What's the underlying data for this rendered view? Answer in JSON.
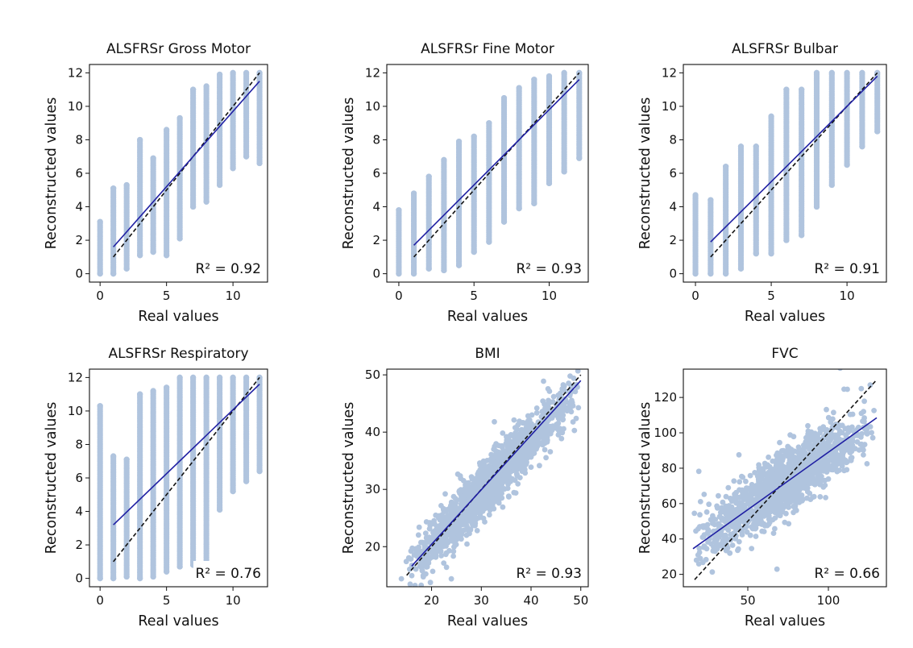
{
  "figure": {
    "colors": {
      "points": "#b0c4de",
      "fit_line": "#1f1fa3",
      "identity_line": "#111111",
      "frame": "#111111"
    }
  },
  "chart_data": [
    {
      "type": "scatter",
      "title": "ALSFRSr Gross Motor",
      "xlabel": "Real values",
      "ylabel": "Reconstructed values",
      "annotation": "R² = 0.92",
      "xlim": [
        -0.8,
        12.6
      ],
      "ylim": [
        -0.5,
        12.5
      ],
      "xticks": [
        0,
        5,
        10
      ],
      "yticks": [
        0,
        2,
        4,
        6,
        8,
        10,
        12
      ],
      "discrete_x": true,
      "x_values": [
        0,
        1,
        2,
        3,
        4,
        5,
        6,
        7,
        8,
        9,
        10,
        11,
        12
      ],
      "y_ranges": [
        [
          0,
          3.1
        ],
        [
          0,
          5.1
        ],
        [
          0.3,
          5.3
        ],
        [
          1.1,
          8.0
        ],
        [
          1.3,
          6.9
        ],
        [
          1.1,
          8.6
        ],
        [
          2.1,
          9.3
        ],
        [
          4.0,
          11.0
        ],
        [
          4.3,
          11.2
        ],
        [
          5.3,
          11.9
        ],
        [
          6.3,
          12.0
        ],
        [
          7.0,
          12.0
        ],
        [
          6.6,
          12.0
        ]
      ],
      "regression_line": {
        "x": [
          1,
          12
        ],
        "y": [
          1.6,
          11.5
        ]
      },
      "identity_line": {
        "x": [
          1,
          12
        ],
        "y": [
          1,
          12
        ]
      },
      "r_squared": 0.92
    },
    {
      "type": "scatter",
      "title": "ALSFRSr Fine Motor",
      "xlabel": "Real values",
      "ylabel": "Reconstructed values",
      "annotation": "R² = 0.93",
      "xlim": [
        -0.8,
        12.6
      ],
      "ylim": [
        -0.5,
        12.5
      ],
      "xticks": [
        0,
        5,
        10
      ],
      "yticks": [
        0,
        2,
        4,
        6,
        8,
        10,
        12
      ],
      "discrete_x": true,
      "x_values": [
        0,
        1,
        2,
        3,
        4,
        5,
        6,
        7,
        8,
        9,
        10,
        11,
        12
      ],
      "y_ranges": [
        [
          0,
          3.8
        ],
        [
          0,
          4.8
        ],
        [
          0.3,
          5.8
        ],
        [
          0.2,
          6.8
        ],
        [
          0.5,
          7.9
        ],
        [
          1.3,
          8.2
        ],
        [
          1.9,
          9.0
        ],
        [
          3.1,
          10.5
        ],
        [
          3.9,
          11.1
        ],
        [
          4.2,
          11.6
        ],
        [
          5.4,
          11.8
        ],
        [
          6.1,
          12.0
        ],
        [
          6.9,
          12.0
        ]
      ],
      "regression_line": {
        "x": [
          1,
          12
        ],
        "y": [
          1.7,
          11.6
        ]
      },
      "identity_line": {
        "x": [
          1,
          12
        ],
        "y": [
          1,
          12
        ]
      },
      "r_squared": 0.93
    },
    {
      "type": "scatter",
      "title": "ALSFRSr Bulbar",
      "xlabel": "Real values",
      "ylabel": "Reconstructed values",
      "annotation": "R² = 0.91",
      "xlim": [
        -0.8,
        12.6
      ],
      "ylim": [
        -0.5,
        12.5
      ],
      "xticks": [
        0,
        5,
        10
      ],
      "yticks": [
        0,
        2,
        4,
        6,
        8,
        10,
        12
      ],
      "discrete_x": true,
      "x_values": [
        0,
        1,
        2,
        3,
        4,
        5,
        6,
        7,
        8,
        9,
        10,
        11,
        12
      ],
      "y_ranges": [
        [
          0,
          4.7
        ],
        [
          0,
          4.4
        ],
        [
          0,
          6.4
        ],
        [
          0.3,
          7.6
        ],
        [
          1.2,
          7.6
        ],
        [
          1.2,
          9.4
        ],
        [
          2.0,
          11.0
        ],
        [
          2.3,
          11.0
        ],
        [
          4.0,
          12.0
        ],
        [
          5.3,
          12.0
        ],
        [
          6.5,
          12.0
        ],
        [
          7.6,
          12.0
        ],
        [
          8.5,
          12.0
        ]
      ],
      "regression_line": {
        "x": [
          1,
          12
        ],
        "y": [
          1.9,
          11.8
        ]
      },
      "identity_line": {
        "x": [
          1,
          12
        ],
        "y": [
          1,
          12
        ]
      },
      "r_squared": 0.91
    },
    {
      "type": "scatter",
      "title": "ALSFRSr Respiratory",
      "xlabel": "Real values",
      "ylabel": "Reconstructed values",
      "annotation": "R² = 0.76",
      "xlim": [
        -0.8,
        12.6
      ],
      "ylim": [
        -0.5,
        12.5
      ],
      "xticks": [
        0,
        5,
        10
      ],
      "yticks": [
        0,
        2,
        4,
        6,
        8,
        10,
        12
      ],
      "discrete_x": true,
      "x_values": [
        0,
        1,
        2,
        3,
        4,
        5,
        6,
        7,
        8,
        9,
        10,
        11,
        12
      ],
      "y_ranges": [
        [
          0,
          10.3
        ],
        [
          0,
          7.3
        ],
        [
          0.1,
          7.1
        ],
        [
          0,
          11.0
        ],
        [
          0.1,
          11.2
        ],
        [
          0.4,
          11.4
        ],
        [
          0.7,
          12.0
        ],
        [
          0.8,
          12.0
        ],
        [
          0.8,
          12.0
        ],
        [
          4.1,
          12.0
        ],
        [
          5.2,
          12.0
        ],
        [
          5.8,
          12.0
        ],
        [
          6.4,
          12.0
        ]
      ],
      "regression_line": {
        "x": [
          1,
          12
        ],
        "y": [
          3.2,
          11.6
        ]
      },
      "identity_line": {
        "x": [
          1,
          12
        ],
        "y": [
          1,
          12
        ]
      },
      "r_squared": 0.76
    },
    {
      "type": "scatter",
      "title": "BMI",
      "xlabel": "Real values",
      "ylabel": "Reconstructed values",
      "annotation": "R² = 0.93",
      "xlim": [
        11,
        51.5
      ],
      "ylim": [
        13,
        51
      ],
      "xticks": [
        20,
        30,
        40,
        50
      ],
      "yticks": [
        20,
        30,
        40,
        50
      ],
      "discrete_x": false,
      "cloud": {
        "x_range": [
          14,
          50
        ],
        "slope": 0.92,
        "intercept": 2.0,
        "spread": 2.3
      },
      "regression_line": {
        "x": [
          16,
          50
        ],
        "y": [
          16.6,
          49.0
        ]
      },
      "identity_line": {
        "x": [
          15,
          50
        ],
        "y": [
          15,
          50
        ]
      },
      "r_squared": 0.93
    },
    {
      "type": "scatter",
      "title": "FVC",
      "xlabel": "Real values",
      "ylabel": "Reconstructed values",
      "annotation": "R² = 0.66",
      "xlim": [
        10,
        136
      ],
      "ylim": [
        13,
        136
      ],
      "xticks": [
        50,
        100
      ],
      "yticks": [
        20,
        40,
        60,
        80,
        100,
        120
      ],
      "discrete_x": false,
      "cloud": {
        "x_range": [
          15,
          130
        ],
        "slope": 0.64,
        "intercept": 25.0,
        "spread": 8.5
      },
      "regression_line": {
        "x": [
          16,
          130
        ],
        "y": [
          34.5,
          108.5
        ]
      },
      "identity_line": {
        "x": [
          17,
          130
        ],
        "y": [
          17,
          130
        ]
      },
      "r_squared": 0.66
    }
  ]
}
